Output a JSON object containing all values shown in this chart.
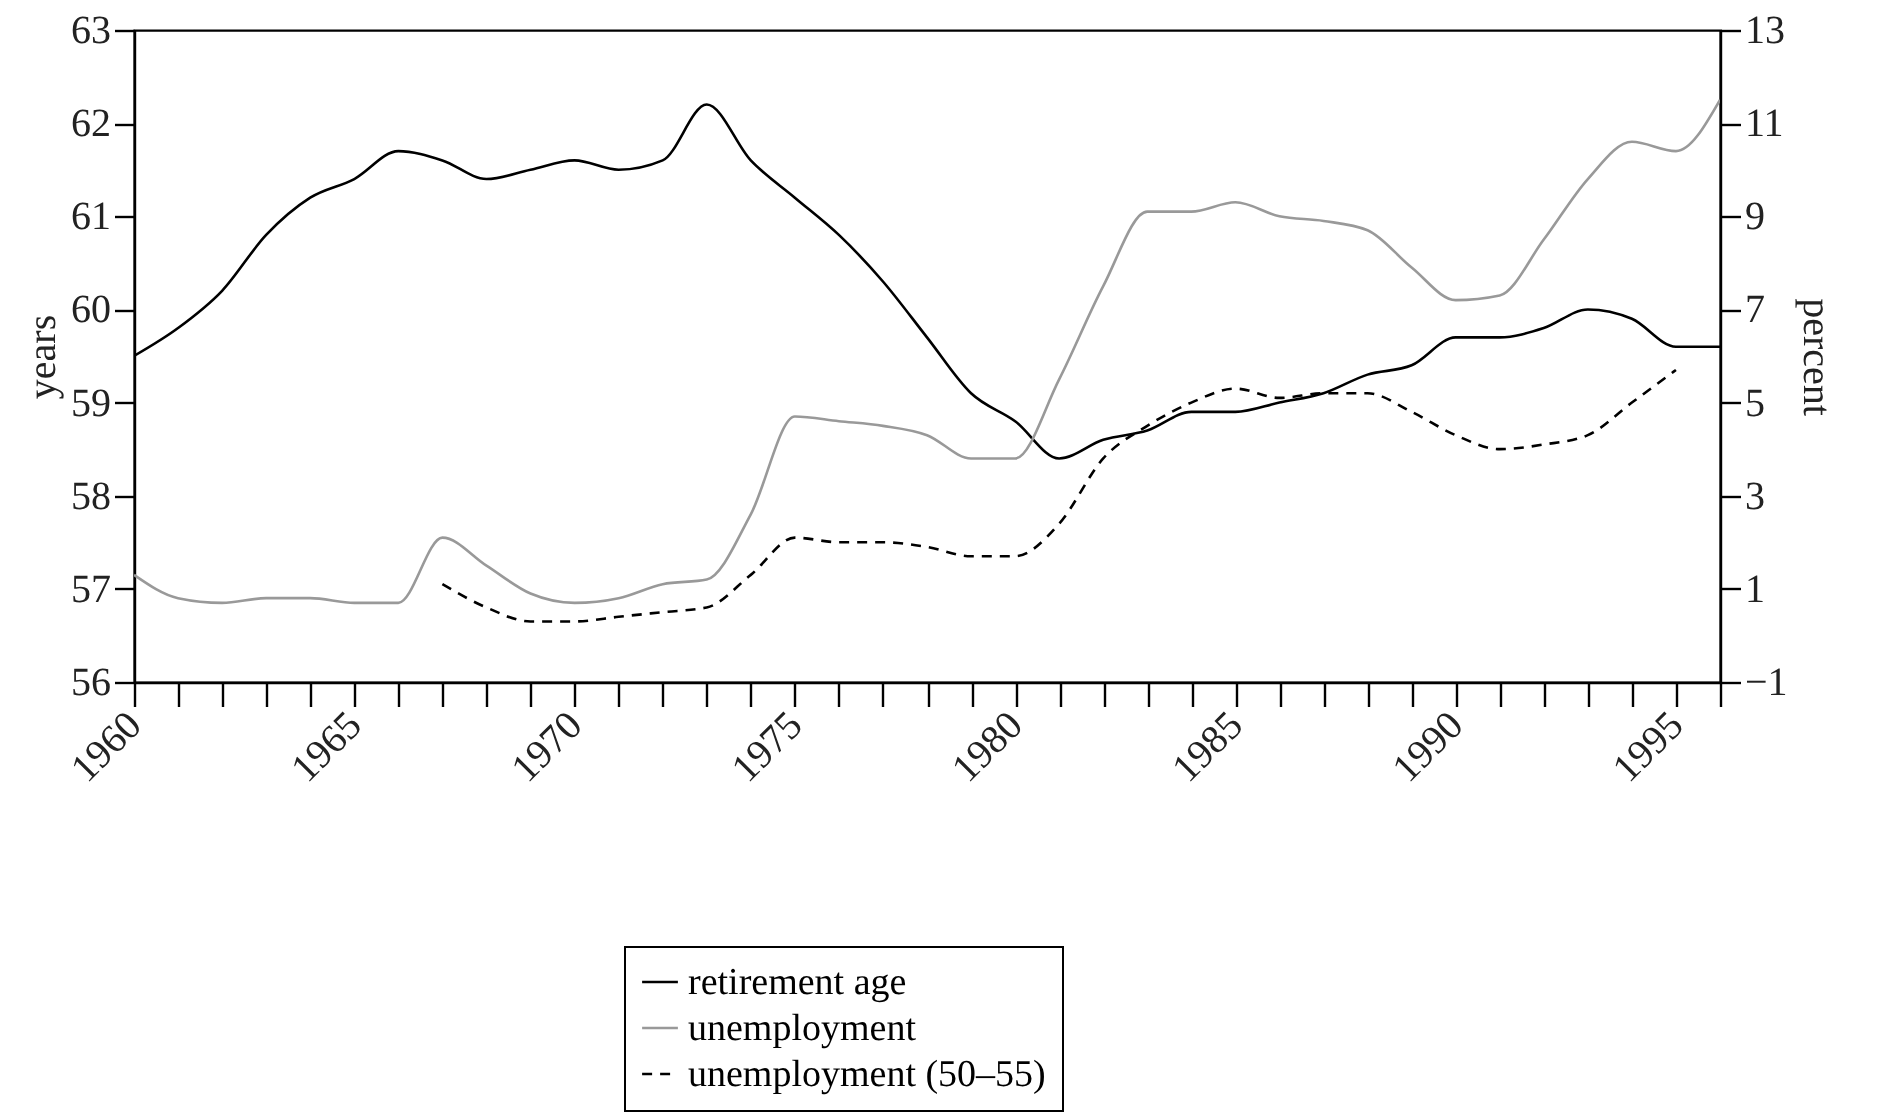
{
  "chart_data": {
    "type": "line",
    "xlabel": null,
    "ylabel": "years",
    "y2label": "percent",
    "x": [
      1960,
      1961,
      1962,
      1963,
      1964,
      1965,
      1966,
      1967,
      1968,
      1969,
      1970,
      1971,
      1972,
      1973,
      1974,
      1975,
      1976,
      1977,
      1978,
      1979,
      1980,
      1981,
      1982,
      1983,
      1984,
      1985,
      1986,
      1987,
      1988,
      1989,
      1990,
      1991,
      1992,
      1993,
      1994,
      1995,
      1996
    ],
    "series": [
      {
        "name": "retirement age",
        "color": "#000000",
        "line_style": "solid",
        "values": [
          59.5,
          59.8,
          60.2,
          60.8,
          61.2,
          61.4,
          61.7,
          61.6,
          61.4,
          61.5,
          61.6,
          61.5,
          61.6,
          62.2,
          61.6,
          61.2,
          60.8,
          60.3,
          59.7,
          59.1,
          58.8,
          58.4,
          58.6,
          58.7,
          58.9,
          58.9,
          59.0,
          59.1,
          59.3,
          59.4,
          59.7,
          59.7,
          59.8,
          60.0,
          59.9,
          59.6,
          59.6
        ]
      },
      {
        "name": "unemployment",
        "color": "#999999",
        "line_style": "solid",
        "axis": "y2",
        "values": [
          1.3,
          0.8,
          0.7,
          0.8,
          0.8,
          0.7,
          0.7,
          2.1,
          1.5,
          0.9,
          0.7,
          0.8,
          1.1,
          1.2,
          2.6,
          4.7,
          4.6,
          4.5,
          4.3,
          3.8,
          3.8,
          5.5,
          7.5,
          9.1,
          9.1,
          9.3,
          9.0,
          8.9,
          8.7,
          7.9,
          7.2,
          7.3,
          8.5,
          9.8,
          10.6,
          10.4,
          11.5
        ]
      },
      {
        "name": "unemployment (50–55)",
        "color": "#000000",
        "line_style": "dashed",
        "axis": "y2",
        "x": [
          1967,
          1968,
          1969,
          1970,
          1971,
          1972,
          1973,
          1974,
          1975,
          1976,
          1977,
          1978,
          1979,
          1980,
          1981,
          1982,
          1983,
          1984,
          1985,
          1986,
          1987,
          1988,
          1989,
          1990,
          1991,
          1992,
          1993,
          1994,
          1995
        ],
        "values": [
          1.1,
          0.6,
          0.3,
          0.3,
          0.4,
          0.5,
          0.6,
          1.3,
          2.1,
          2.0,
          2.0,
          1.9,
          1.7,
          1.7,
          2.4,
          3.8,
          4.5,
          5.0,
          5.3,
          5.1,
          5.2,
          5.2,
          4.8,
          4.3,
          4.0,
          4.1,
          4.3,
          5.0,
          5.7
        ]
      }
    ],
    "xlim": [
      1960,
      1996
    ],
    "xticks": [
      1960,
      {
        "value": 1961,
        "label": null
      },
      {
        "value": 1962,
        "label": null
      },
      {
        "value": 1963,
        "label": null
      },
      {
        "value": 1964,
        "label": null
      },
      1965,
      {
        "value": 1966,
        "label": null
      },
      {
        "value": 1967,
        "label": null
      },
      {
        "value": 1968,
        "label": null
      },
      {
        "value": 1969,
        "label": null
      },
      1970,
      {
        "value": 1971,
        "label": null
      },
      {
        "value": 1972,
        "label": null
      },
      {
        "value": 1973,
        "label": null
      },
      {
        "value": 1974,
        "label": null
      },
      1975,
      {
        "value": 1976,
        "label": null
      },
      {
        "value": 1977,
        "label": null
      },
      {
        "value": 1978,
        "label": null
      },
      {
        "value": 1979,
        "label": null
      },
      1980,
      {
        "value": 1981,
        "label": null
      },
      {
        "value": 1982,
        "label": null
      },
      {
        "value": 1983,
        "label": null
      },
      {
        "value": 1984,
        "label": null
      },
      1985,
      {
        "value": 1986,
        "label": null
      },
      {
        "value": 1987,
        "label": null
      },
      {
        "value": 1988,
        "label": null
      },
      {
        "value": 1989,
        "label": null
      },
      1990,
      {
        "value": 1991,
        "label": null
      },
      {
        "value": 1992,
        "label": null
      },
      {
        "value": 1993,
        "label": null
      },
      {
        "value": 1994,
        "label": null
      },
      1995,
      {
        "value": 1996,
        "label": null
      }
    ],
    "ylim": [
      56,
      63
    ],
    "yticks": [
      56,
      57,
      58,
      59,
      60,
      61,
      62,
      63
    ],
    "y2lim": [
      -1,
      13
    ],
    "y2ticks": [
      {
        "value": -1,
        "label": "−1"
      },
      1,
      3,
      5,
      7,
      9,
      11,
      13
    ],
    "legend": "bottom",
    "grid": false
  }
}
